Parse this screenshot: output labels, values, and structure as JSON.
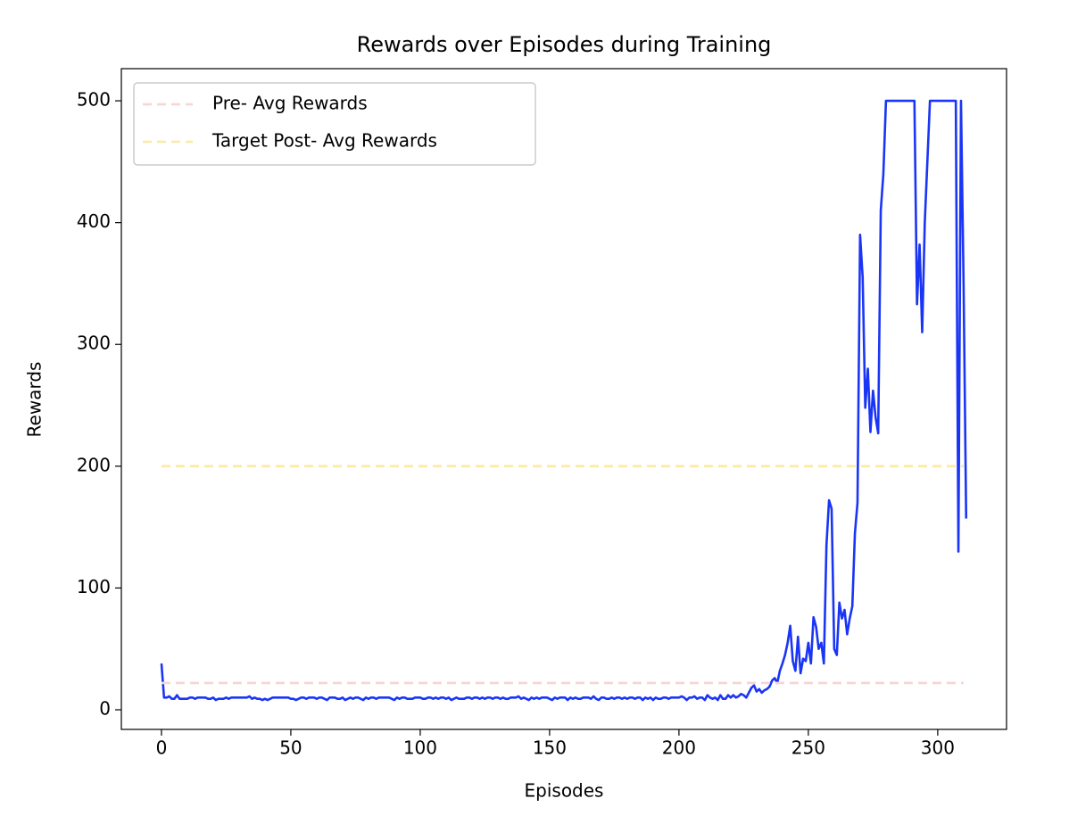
{
  "chart_data": {
    "type": "line",
    "title": "Rewards over Episodes during Training",
    "xlabel": "Episodes",
    "ylabel": "Rewards",
    "xlim": [
      -15.5,
      326.6
    ],
    "ylim": [
      -16.1,
      526.4
    ],
    "xticks": [
      0,
      50,
      100,
      150,
      200,
      250,
      300
    ],
    "yticks": [
      0,
      100,
      200,
      300,
      400,
      500
    ],
    "legend": "upper left",
    "series": [
      {
        "color": "#1a35f5",
        "x": [
          0,
          1,
          2,
          3,
          4,
          5,
          6,
          7,
          8,
          9,
          10,
          11,
          12,
          13,
          14,
          15,
          16,
          17,
          18,
          19,
          20,
          21,
          22,
          23,
          24,
          25,
          26,
          27,
          28,
          29,
          30,
          31,
          32,
          33,
          34,
          35,
          36,
          37,
          38,
          39,
          40,
          41,
          42,
          43,
          44,
          45,
          46,
          47,
          48,
          49,
          50,
          51,
          52,
          53,
          54,
          55,
          56,
          57,
          58,
          59,
          60,
          61,
          62,
          63,
          64,
          65,
          66,
          67,
          68,
          69,
          70,
          71,
          72,
          73,
          74,
          75,
          76,
          77,
          78,
          79,
          80,
          81,
          82,
          83,
          84,
          85,
          86,
          87,
          88,
          89,
          90,
          91,
          92,
          93,
          94,
          95,
          96,
          97,
          98,
          99,
          100,
          101,
          102,
          103,
          104,
          105,
          106,
          107,
          108,
          109,
          110,
          111,
          112,
          113,
          114,
          115,
          116,
          117,
          118,
          119,
          120,
          121,
          122,
          123,
          124,
          125,
          126,
          127,
          128,
          129,
          130,
          131,
          132,
          133,
          134,
          135,
          136,
          137,
          138,
          139,
          140,
          141,
          142,
          143,
          144,
          145,
          146,
          147,
          148,
          149,
          150,
          151,
          152,
          153,
          154,
          155,
          156,
          157,
          158,
          159,
          160,
          161,
          162,
          163,
          164,
          165,
          166,
          167,
          168,
          169,
          170,
          171,
          172,
          173,
          174,
          175,
          176,
          177,
          178,
          179,
          180,
          181,
          182,
          183,
          184,
          185,
          186,
          187,
          188,
          189,
          190,
          191,
          192,
          193,
          194,
          195,
          196,
          197,
          198,
          199,
          200,
          201,
          202,
          203,
          204,
          205,
          206,
          207,
          208,
          209,
          210,
          211,
          212,
          213,
          214,
          215,
          216,
          217,
          218,
          219,
          220,
          221,
          222,
          223,
          224,
          225,
          226,
          227,
          228,
          229,
          230,
          231,
          232,
          233,
          234,
          235,
          236,
          237,
          238,
          239,
          240,
          241,
          242,
          243,
          244,
          245,
          246,
          247,
          248,
          249,
          250,
          251,
          252,
          253,
          254,
          255,
          256,
          257,
          258,
          259,
          260,
          261,
          262,
          263,
          264,
          265,
          266,
          267,
          268,
          269,
          270,
          271,
          272,
          273,
          274,
          275,
          276,
          277,
          278,
          279,
          280,
          281,
          282,
          283,
          284,
          285,
          286,
          287,
          288,
          289,
          290,
          291,
          292,
          293,
          294,
          295,
          296,
          297,
          298,
          299,
          300,
          301,
          302,
          303,
          304,
          305,
          306,
          307,
          308,
          309,
          310,
          311
        ],
        "values": [
          38,
          10,
          10,
          11,
          9,
          9,
          12,
          9,
          9,
          9,
          9,
          10,
          10,
          9,
          10,
          10,
          10,
          10,
          9,
          9,
          10,
          8,
          9,
          9,
          9,
          10,
          9,
          10,
          10,
          10,
          10,
          10,
          10,
          10,
          11,
          9,
          10,
          9,
          9,
          8,
          9,
          8,
          9,
          10,
          10,
          10,
          10,
          10,
          10,
          10,
          9,
          9,
          8,
          9,
          10,
          10,
          9,
          10,
          10,
          10,
          9,
          10,
          10,
          9,
          8,
          10,
          10,
          10,
          9,
          9,
          10,
          8,
          9,
          10,
          9,
          10,
          10,
          9,
          8,
          10,
          9,
          10,
          10,
          9,
          10,
          10,
          10,
          10,
          10,
          9,
          8,
          10,
          9,
          10,
          10,
          9,
          9,
          9,
          10,
          10,
          10,
          9,
          9,
          10,
          10,
          9,
          10,
          9,
          10,
          10,
          9,
          10,
          8,
          9,
          10,
          9,
          9,
          9,
          10,
          10,
          9,
          10,
          10,
          9,
          10,
          9,
          10,
          10,
          9,
          10,
          10,
          9,
          10,
          9,
          9,
          10,
          10,
          10,
          11,
          9,
          10,
          9,
          8,
          10,
          9,
          10,
          9,
          10,
          10,
          10,
          9,
          8,
          10,
          9,
          10,
          10,
          10,
          8,
          10,
          9,
          10,
          9,
          9,
          10,
          10,
          10,
          9,
          11,
          9,
          8,
          10,
          10,
          9,
          9,
          10,
          9,
          10,
          10,
          9,
          10,
          9,
          10,
          10,
          9,
          10,
          10,
          8,
          10,
          9,
          10,
          8,
          10,
          9,
          9,
          10,
          10,
          9,
          10,
          10,
          10,
          10,
          11,
          10,
          8,
          10,
          10,
          11,
          9,
          10,
          10,
          8,
          12,
          10,
          9,
          10,
          8,
          12,
          9,
          9,
          12,
          10,
          12,
          10,
          11,
          13,
          12,
          10,
          14,
          18,
          20,
          15,
          17,
          14,
          16,
          17,
          19,
          24,
          26,
          22,
          32,
          38,
          45,
          55,
          69,
          40,
          32,
          60,
          30,
          42,
          40,
          55,
          38,
          76,
          68,
          50,
          55,
          38,
          135,
          172,
          165,
          50,
          45,
          88,
          75,
          82,
          62,
          75,
          85,
          145,
          170,
          390,
          355,
          248,
          280,
          228,
          262,
          240,
          227,
          410,
          440,
          500,
          500,
          500,
          500,
          500,
          500,
          500,
          500,
          500,
          500,
          500,
          500,
          333,
          382,
          310,
          400,
          450,
          500,
          500,
          500,
          500,
          500,
          500,
          500,
          500,
          500,
          500,
          500,
          130,
          500,
          350,
          157
        ]
      },
      {
        "name": "Pre- Avg Rewards",
        "color": "#f8d4d2",
        "dashed": true,
        "x": [
          0,
          310
        ],
        "values": [
          22,
          22
        ]
      },
      {
        "name": "Target Post- Avg Rewards",
        "color": "#fbeaa2",
        "dashed": true,
        "x": [
          0,
          310
        ],
        "values": [
          200,
          200
        ]
      }
    ]
  }
}
